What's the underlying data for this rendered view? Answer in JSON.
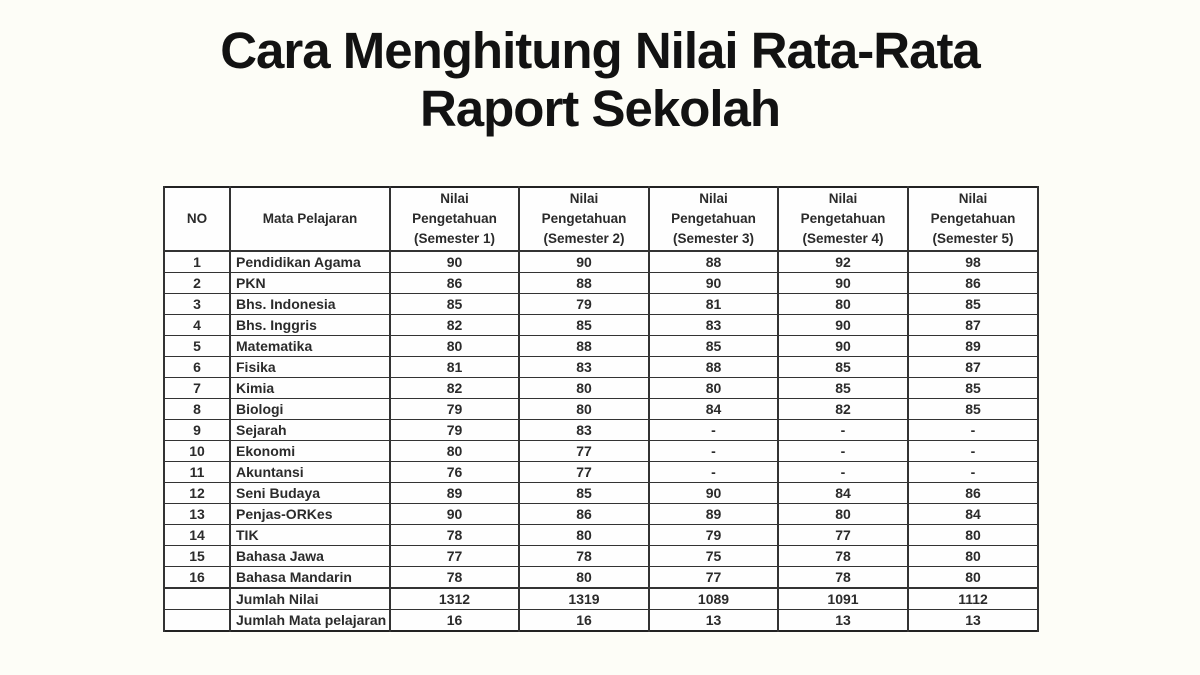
{
  "page": {
    "title_line1": "Cara Menghitung Nilai Rata-Rata",
    "title_line2": "Raport Sekolah"
  },
  "table": {
    "columns": [
      "NO",
      "Mata Pelajaran",
      "Nilai\nPengetahuan\n(Semester 1)",
      "Nilai\nPengetahuan\n(Semester 2)",
      "Nilai\nPengetahuan\n(Semester 3)",
      "Nilai\nPengetahuan\n(Semester 4)",
      "Nilai\nPengetahuan\n(Semester 5)"
    ],
    "rows": [
      {
        "no": "1",
        "subject": "Pendidikan Agama",
        "scores": [
          "90",
          "90",
          "88",
          "92",
          "98"
        ]
      },
      {
        "no": "2",
        "subject": "PKN",
        "scores": [
          "86",
          "88",
          "90",
          "90",
          "86"
        ]
      },
      {
        "no": "3",
        "subject": "Bhs. Indonesia",
        "scores": [
          "85",
          "79",
          "81",
          "80",
          "85"
        ]
      },
      {
        "no": "4",
        "subject": "Bhs. Inggris",
        "scores": [
          "82",
          "85",
          "83",
          "90",
          "87"
        ]
      },
      {
        "no": "5",
        "subject": "Matematika",
        "scores": [
          "80",
          "88",
          "85",
          "90",
          "89"
        ]
      },
      {
        "no": "6",
        "subject": "Fisika",
        "scores": [
          "81",
          "83",
          "88",
          "85",
          "87"
        ]
      },
      {
        "no": "7",
        "subject": "Kimia",
        "scores": [
          "82",
          "80",
          "80",
          "85",
          "85"
        ]
      },
      {
        "no": "8",
        "subject": "Biologi",
        "scores": [
          "79",
          "80",
          "84",
          "82",
          "85"
        ]
      },
      {
        "no": "9",
        "subject": "Sejarah",
        "scores": [
          "79",
          "83",
          "-",
          "-",
          "-"
        ]
      },
      {
        "no": "10",
        "subject": "Ekonomi",
        "scores": [
          "80",
          "77",
          "-",
          "-",
          "-"
        ]
      },
      {
        "no": "11",
        "subject": "Akuntansi",
        "scores": [
          "76",
          "77",
          "-",
          "-",
          "-"
        ]
      },
      {
        "no": "12",
        "subject": "Seni Budaya",
        "scores": [
          "89",
          "85",
          "90",
          "84",
          "86"
        ]
      },
      {
        "no": "13",
        "subject": "Penjas-ORKes",
        "scores": [
          "90",
          "86",
          "89",
          "80",
          "84"
        ]
      },
      {
        "no": "14",
        "subject": "TIK",
        "scores": [
          "78",
          "80",
          "79",
          "77",
          "80"
        ]
      },
      {
        "no": "15",
        "subject": "Bahasa Jawa",
        "scores": [
          "77",
          "78",
          "75",
          "78",
          "80"
        ]
      },
      {
        "no": "16",
        "subject": "Bahasa Mandarin",
        "scores": [
          "78",
          "80",
          "77",
          "78",
          "80"
        ]
      }
    ],
    "summary_rows": [
      {
        "label": "Jumlah Nilai",
        "values": [
          "1312",
          "1319",
          "1089",
          "1091",
          "1112"
        ]
      },
      {
        "label": "Jumlah Mata pelajaran",
        "values": [
          "16",
          "16",
          "13",
          "13",
          "13"
        ]
      }
    ]
  }
}
